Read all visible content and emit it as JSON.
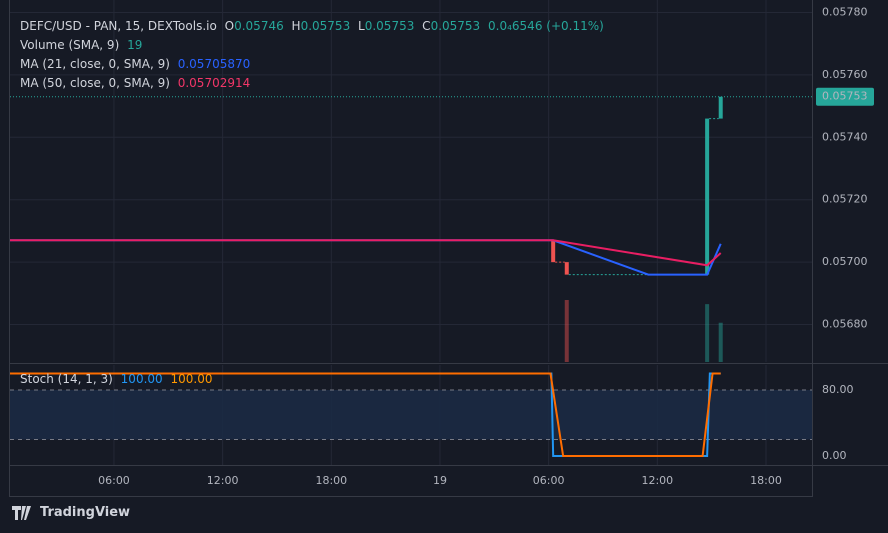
{
  "header": {
    "symbol": "DEFC/USD - PAN, 15, DEXTools.io",
    "o_key": "O",
    "o": "0.05746",
    "h_key": "H",
    "h": "0.05753",
    "l_key": "L",
    "l": "0.05753",
    "c_key": "C",
    "c": "0.05753",
    "change": "0.0₄6546 (+0.11%)",
    "volume_name": "Volume (SMA, 9)",
    "volume_value": "19",
    "ma21_name": "MA (21, close, 0, SMA, 9)",
    "ma21_value": "0.05705870",
    "ma50_name": "MA (50, close, 0, SMA, 9)",
    "ma50_value": "0.05702914",
    "stoch_name": "Stoch (14, 1, 3)",
    "stoch_k": "100.00",
    "stoch_d": "100.00"
  },
  "brand": "TradingView",
  "chart_data": [
    {
      "type": "candlestick",
      "xlim": [
        0.26,
        44.54
      ],
      "xticks": [
        {
          "value": 6,
          "label": "06:00"
        },
        {
          "value": 12,
          "label": "12:00"
        },
        {
          "value": 18,
          "label": "18:00"
        },
        {
          "value": 24,
          "label": "19"
        },
        {
          "value": 30,
          "label": "06:00"
        },
        {
          "value": 36,
          "label": "12:00"
        },
        {
          "value": 42,
          "label": "18:00"
        }
      ],
      "ylim": [
        0.05668,
        0.05784
      ],
      "yticks": [
        {
          "value": 0.0568,
          "label": "0.05680"
        },
        {
          "value": 0.057,
          "label": "0.05700"
        },
        {
          "value": 0.0572,
          "label": "0.05720"
        },
        {
          "value": 0.0574,
          "label": "0.05740"
        },
        {
          "value": 0.0576,
          "label": "0.05760"
        },
        {
          "value": 0.0578,
          "label": "0.05780"
        }
      ],
      "grid": true,
      "up_color": "#26a69a",
      "down_color": "#ef5350",
      "candles": [
        {
          "x": 30.25,
          "open": 0.05707,
          "close": 0.057,
          "volume": 0
        },
        {
          "x": 31.0,
          "open": 0.057,
          "close": 0.05696,
          "volume": 30
        },
        {
          "x": 38.75,
          "open": 0.05696,
          "close": 0.05746,
          "volume": 28
        },
        {
          "x": 39.5,
          "open": 0.05746,
          "close": 0.05753,
          "volume": 19
        }
      ],
      "last_price": {
        "value": 0.05753,
        "label": "0.05753"
      },
      "series": [
        {
          "name": "MA 21",
          "color": "#2962ff",
          "x": [
            0.26,
            30.25,
            35.5,
            38.75,
            39.5
          ],
          "values": [
            0.05707,
            0.05707,
            0.05696,
            0.05696,
            0.0570587
          ]
        },
        {
          "name": "MA 50",
          "color": "#e91e63",
          "x": [
            0.26,
            30.25,
            38.75,
            39.5
          ],
          "values": [
            0.05707,
            0.05707,
            0.05699,
            0.05702914
          ]
        }
      ]
    },
    {
      "type": "line",
      "ylim": [
        -10.9,
        110.3
      ],
      "yticks": [
        {
          "value": 0,
          "label": "0.00"
        },
        {
          "value": 80,
          "label": "80.00"
        }
      ],
      "band": [
        20,
        80
      ],
      "series": [
        {
          "name": "%K",
          "color": "#2196f3",
          "x": [
            0.26,
            30.15,
            30.25,
            38.75,
            38.9,
            39.5
          ],
          "values": [
            100,
            100,
            0,
            0,
            100,
            100
          ]
        },
        {
          "name": "%D",
          "color": "#ff6d00",
          "x": [
            0.26,
            30.1,
            30.8,
            38.5,
            39.05,
            39.5
          ],
          "values": [
            100,
            100,
            0,
            0,
            100,
            100
          ]
        }
      ]
    }
  ]
}
